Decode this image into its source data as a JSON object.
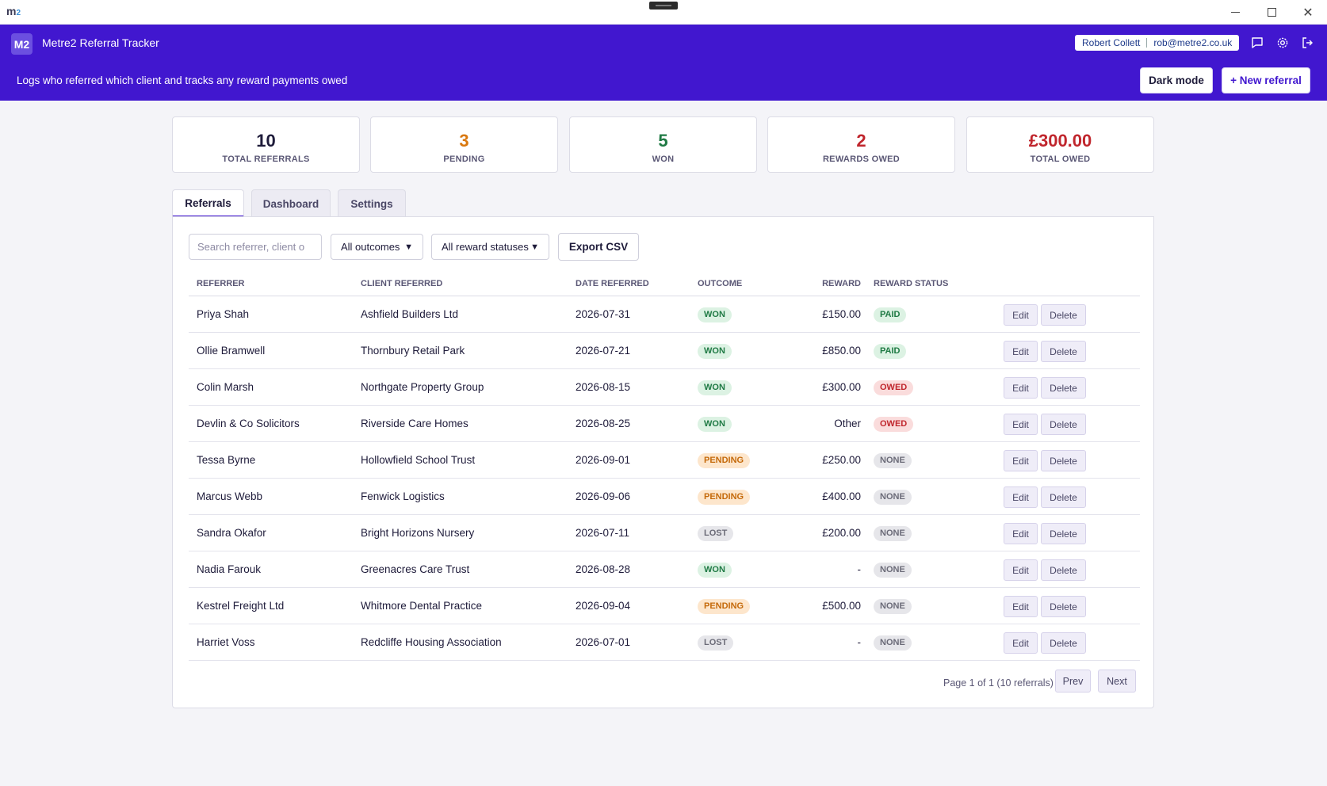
{
  "window": {
    "logo": "m",
    "logo_sup": "2"
  },
  "header": {
    "badge": "M2",
    "title": "Metre2 Referral Tracker",
    "user_name": "Robert Collett",
    "user_email": "rob@metre2.co.uk",
    "subtitle": "Logs who referred which client and tracks any reward payments owed",
    "dark_mode_label": "Dark mode",
    "new_referral_label": "+ New referral"
  },
  "stats": [
    {
      "value": "10",
      "label": "TOTAL REFERRALS",
      "color": "#1e1b3a"
    },
    {
      "value": "3",
      "label": "PENDING",
      "color": "#d9780f"
    },
    {
      "value": "5",
      "label": "WON",
      "color": "#1f7a44"
    },
    {
      "value": "2",
      "label": "REWARDS OWED",
      "color": "#c0262d"
    },
    {
      "value": "£300.00",
      "label": "TOTAL OWED",
      "color": "#c0262d"
    }
  ],
  "tabs": [
    "Referrals",
    "Dashboard",
    "Settings"
  ],
  "toolbar": {
    "search_placeholder": "Search referrer, client o",
    "outcome_filter": "All outcomes",
    "status_filter": "All reward statuses",
    "export_label": "Export CSV"
  },
  "columns": [
    "REFERRER",
    "CLIENT REFERRED",
    "DATE REFERRED",
    "OUTCOME",
    "REWARD",
    "REWARD STATUS"
  ],
  "rows": [
    {
      "referrer": "Priya Shah",
      "client": "Ashfield Builders Ltd",
      "date": "2026-07-31",
      "outcome": "WON",
      "reward": "£150.00",
      "status": "PAID"
    },
    {
      "referrer": "Ollie Bramwell",
      "client": "Thornbury Retail Park",
      "date": "2026-07-21",
      "outcome": "WON",
      "reward": "£850.00",
      "status": "PAID"
    },
    {
      "referrer": "Colin Marsh",
      "client": "Northgate Property Group",
      "date": "2026-08-15",
      "outcome": "WON",
      "reward": "£300.00",
      "status": "OWED"
    },
    {
      "referrer": "Devlin & Co Solicitors",
      "client": "Riverside Care Homes",
      "date": "2026-08-25",
      "outcome": "WON",
      "reward": "Other",
      "status": "OWED"
    },
    {
      "referrer": "Tessa Byrne",
      "client": "Hollowfield School Trust",
      "date": "2026-09-01",
      "outcome": "PENDING",
      "reward": "£250.00",
      "status": "NONE"
    },
    {
      "referrer": "Marcus Webb",
      "client": "Fenwick Logistics",
      "date": "2026-09-06",
      "outcome": "PENDING",
      "reward": "£400.00",
      "status": "NONE"
    },
    {
      "referrer": "Sandra Okafor",
      "client": "Bright Horizons Nursery",
      "date": "2026-07-11",
      "outcome": "LOST",
      "reward": "£200.00",
      "status": "NONE"
    },
    {
      "referrer": "Nadia Farouk",
      "client": "Greenacres Care Trust",
      "date": "2026-08-28",
      "outcome": "WON",
      "reward": "-",
      "status": "NONE"
    },
    {
      "referrer": "Kestrel Freight Ltd",
      "client": "Whitmore Dental Practice",
      "date": "2026-09-04",
      "outcome": "PENDING",
      "reward": "£500.00",
      "status": "NONE"
    },
    {
      "referrer": "Harriet Voss",
      "client": "Redcliffe Housing Association",
      "date": "2026-07-01",
      "outcome": "LOST",
      "reward": "-",
      "status": "NONE"
    }
  ],
  "row_actions": {
    "edit": "Edit",
    "delete": "Delete"
  },
  "pager": {
    "text": "Page 1 of 1 (10 referrals)",
    "prev": "Prev",
    "next": "Next"
  },
  "pill_colors": {
    "WON": {
      "bg": "#dcf2e3",
      "fg": "#1f7a44"
    },
    "PENDING": {
      "bg": "#fde6cc",
      "fg": "#c56a0b"
    },
    "LOST": {
      "bg": "#e6e6ea",
      "fg": "#6b6b78"
    },
    "PAID": {
      "bg": "#dcf2e3",
      "fg": "#1f7a44"
    },
    "OWED": {
      "bg": "#fadcdc",
      "fg": "#c0262d"
    },
    "NONE": {
      "bg": "#e6e6ea",
      "fg": "#6b6b78"
    }
  }
}
